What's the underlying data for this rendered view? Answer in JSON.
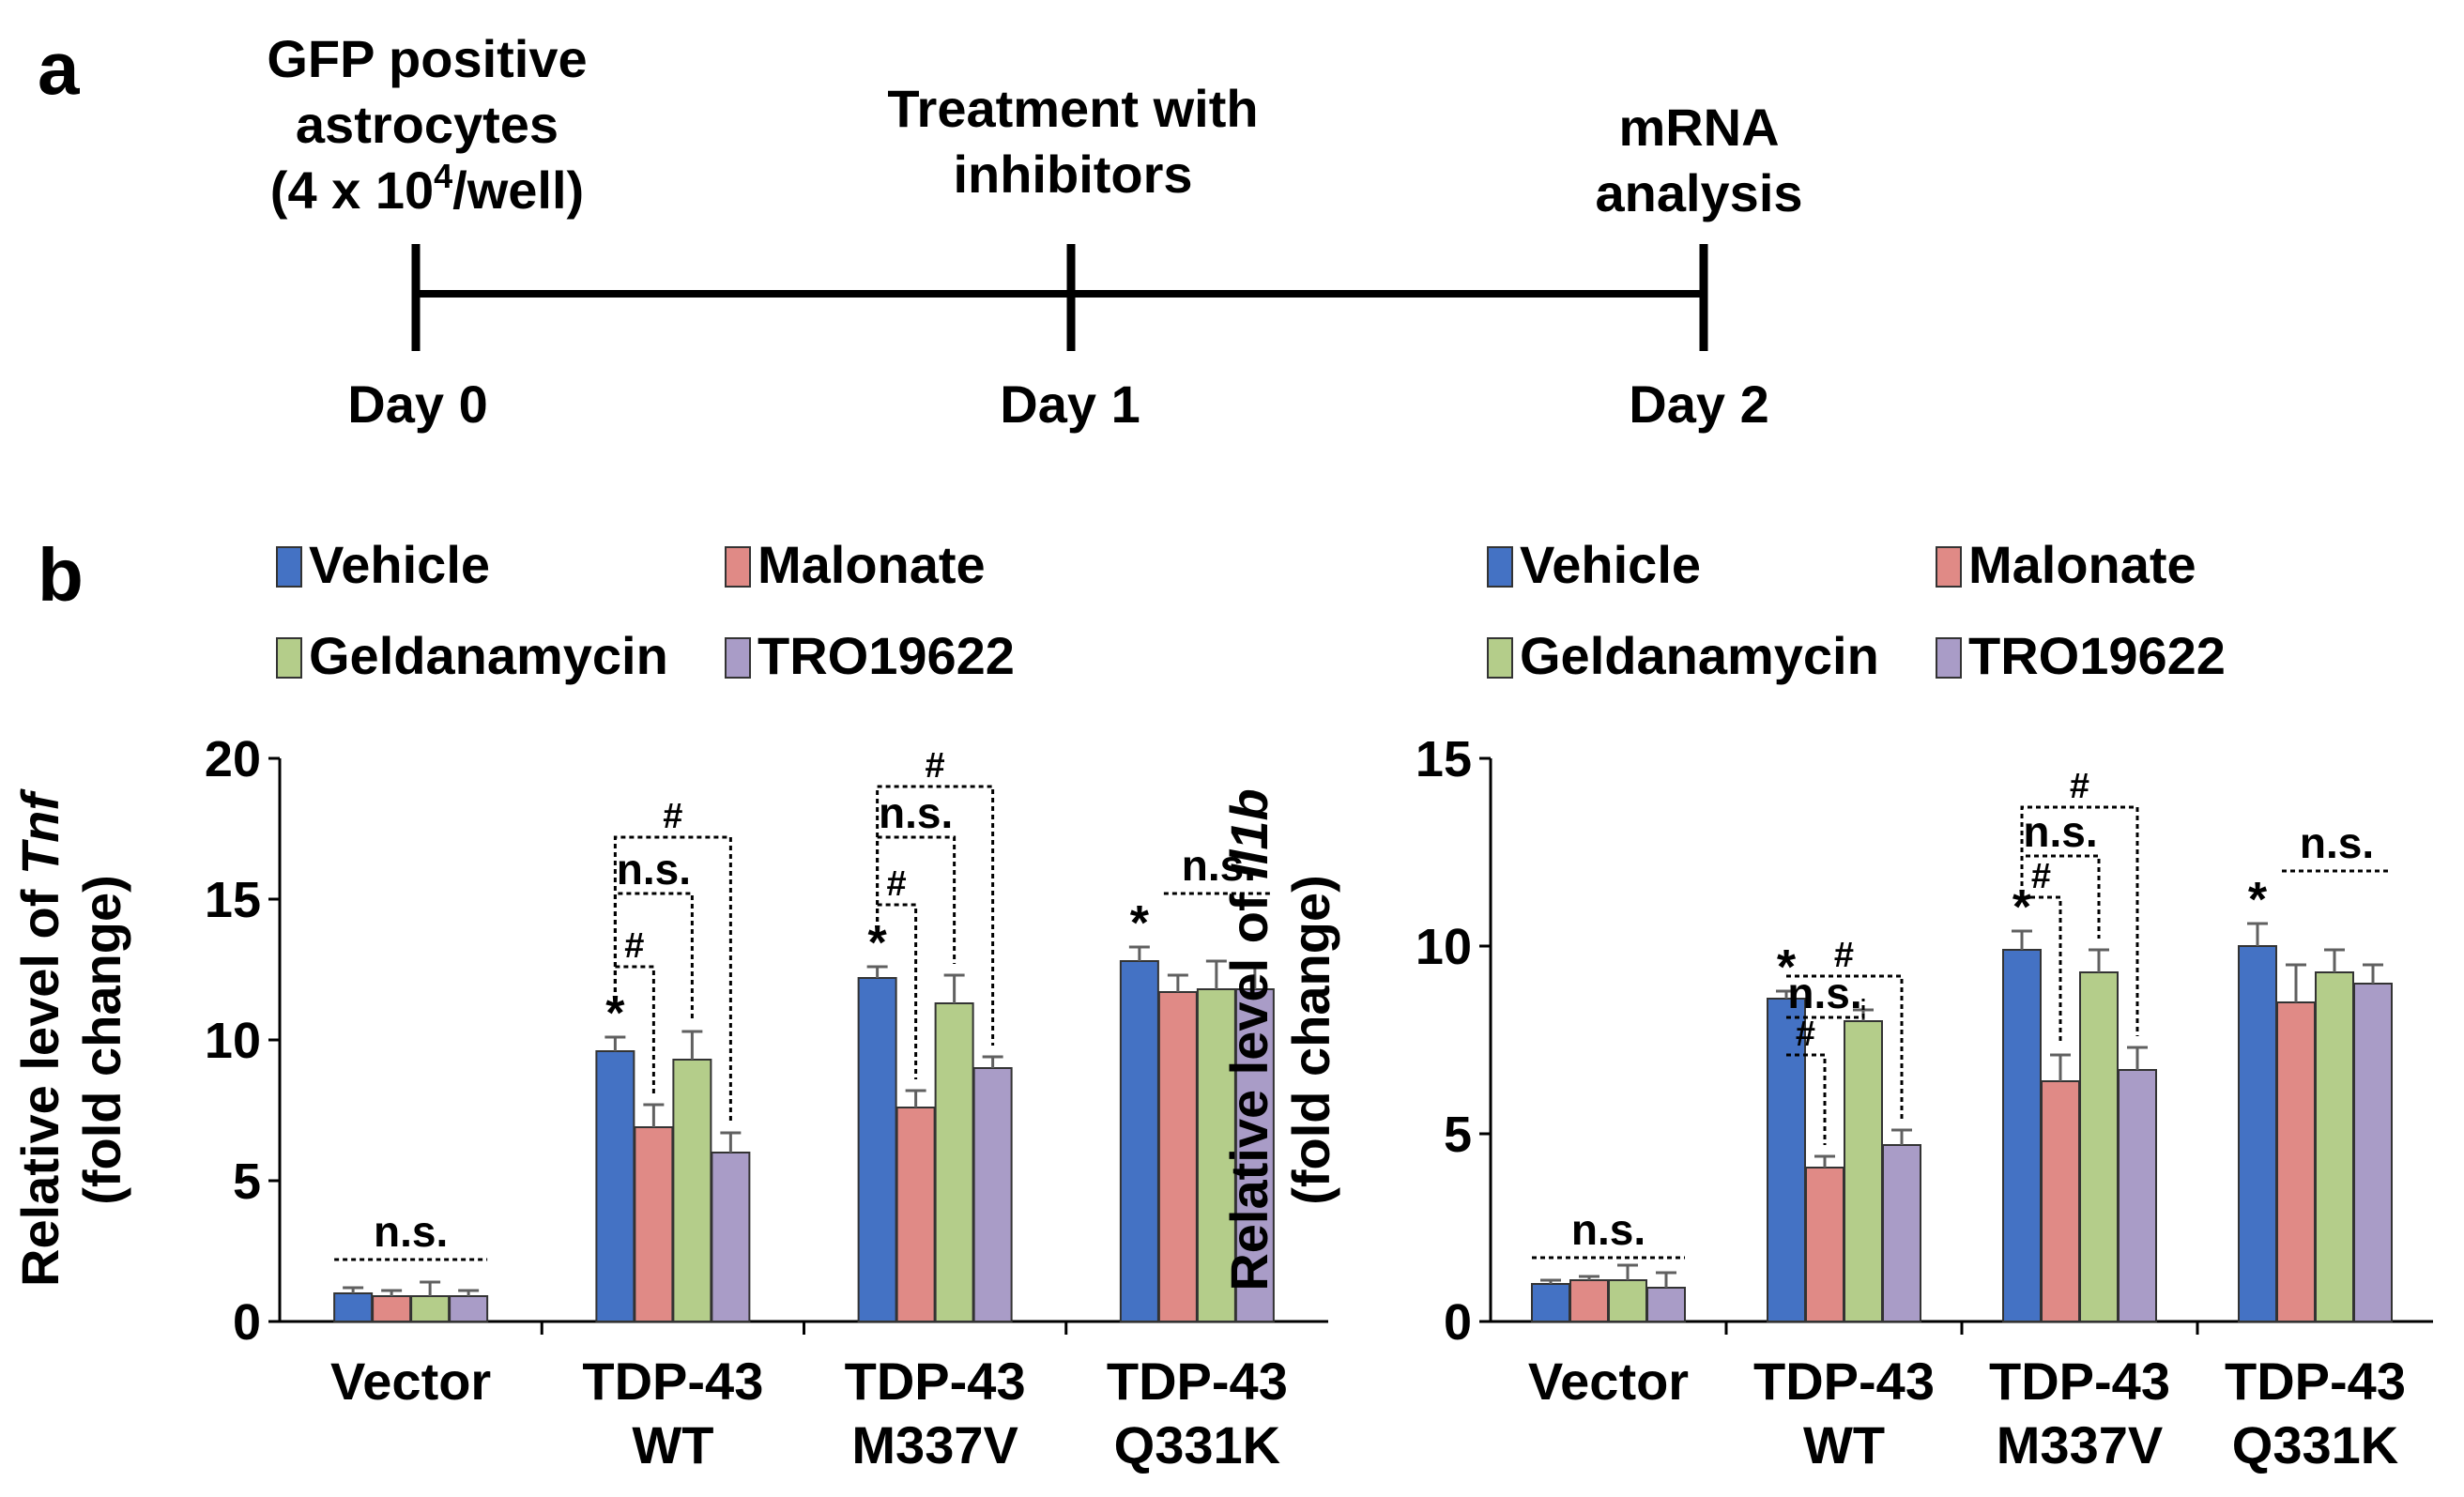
{
  "panel_a": {
    "label": "a",
    "steps": [
      {
        "title": [
          "GFP positive",
          "astrocytes",
          "(4 x 10",
          "4",
          "/well)"
        ],
        "day": "Day 0"
      },
      {
        "title": [
          "Treatment with",
          "inhibitors"
        ],
        "day": "Day 1"
      },
      {
        "title": [
          "mRNA",
          "analysis"
        ],
        "day": "Day 2"
      }
    ]
  },
  "panel_b": {
    "label": "b"
  },
  "colors": {
    "Vehicle": "#4472c4",
    "Malonate": "#e08a86",
    "Geldanamycin": "#b4cd8a",
    "TRO19622": "#a99cc7",
    "error": "#606060"
  },
  "chart_data": [
    {
      "type": "bar",
      "title": "",
      "ylabel_prefix": "Relative level of ",
      "ylabel_gene": "Tnf",
      "ylabel_line2": "(fold change)",
      "ylim": [
        0,
        20
      ],
      "yticks": [
        0,
        5,
        10,
        15,
        20
      ],
      "legend": [
        "Vehicle",
        "Malonate",
        "Geldanamycin",
        "TRO19622"
      ],
      "categories": [
        [
          "Vector"
        ],
        [
          "TDP-43",
          "WT"
        ],
        [
          "TDP-43",
          "M337V"
        ],
        [
          "TDP-43",
          "Q331K"
        ]
      ],
      "series": [
        {
          "name": "Vehicle",
          "values": [
            1.0,
            9.6,
            12.2,
            12.8
          ],
          "errors": [
            0.2,
            0.5,
            0.4,
            0.5
          ]
        },
        {
          "name": "Malonate",
          "values": [
            0.9,
            6.9,
            7.6,
            11.7
          ],
          "errors": [
            0.2,
            0.8,
            0.6,
            0.6
          ]
        },
        {
          "name": "Geldanamycin",
          "values": [
            0.9,
            9.3,
            11.3,
            11.8
          ],
          "errors": [
            0.5,
            1.0,
            1.0,
            1.0
          ]
        },
        {
          "name": "TRO19622",
          "values": [
            0.9,
            6.0,
            9.0,
            11.8
          ],
          "errors": [
            0.2,
            0.7,
            0.4,
            0.8
          ]
        }
      ],
      "star_marks": [
        {
          "group": 1,
          "text": "*"
        },
        {
          "group": 2,
          "text": "*"
        },
        {
          "group": 3,
          "text": "*"
        }
      ],
      "comparisons": [
        {
          "group": "all",
          "from": 0,
          "to": 3,
          "y": 2.2,
          "label": "n.s.",
          "type": "line"
        },
        {
          "group": 1,
          "from": 0,
          "to": 1,
          "y": 12.6,
          "label": "#",
          "type": "bracket"
        },
        {
          "group": 1,
          "from": 0,
          "to": 2,
          "y": 15.2,
          "label": "n.s.",
          "type": "bracket"
        },
        {
          "group": 1,
          "from": 0,
          "to": 3,
          "y": 17.2,
          "label": "#",
          "type": "bracket"
        },
        {
          "group": 2,
          "from": 0,
          "to": 1,
          "y": 14.8,
          "label": "#",
          "type": "bracket"
        },
        {
          "group": 2,
          "from": 0,
          "to": 2,
          "y": 17.2,
          "label": "n.s.",
          "type": "bracket"
        },
        {
          "group": 2,
          "from": 0,
          "to": 3,
          "y": 19.0,
          "label": "#",
          "type": "bracket"
        },
        {
          "group": 3,
          "from": 1,
          "to": 3,
          "y": 15.2,
          "label": "n.s.",
          "type": "line"
        }
      ]
    },
    {
      "type": "bar",
      "title": "",
      "ylabel_prefix": "Relative level of ",
      "ylabel_gene": "Il1b",
      "ylabel_line2": "(fold change)",
      "ylim": [
        0,
        15
      ],
      "yticks": [
        0,
        5,
        10,
        15
      ],
      "legend": [
        "Vehicle",
        "Malonate",
        "Geldanamycin",
        "TRO19622"
      ],
      "categories": [
        [
          "Vector"
        ],
        [
          "TDP-43",
          "WT"
        ],
        [
          "TDP-43",
          "M337V"
        ],
        [
          "TDP-43",
          "Q331K"
        ]
      ],
      "series": [
        {
          "name": "Vehicle",
          "values": [
            1.0,
            8.6,
            9.9,
            10.0
          ],
          "errors": [
            0.1,
            0.2,
            0.5,
            0.6
          ]
        },
        {
          "name": "Malonate",
          "values": [
            1.1,
            4.1,
            6.4,
            8.5
          ],
          "errors": [
            0.1,
            0.3,
            0.7,
            1.0
          ]
        },
        {
          "name": "Geldanamycin",
          "values": [
            1.1,
            8.0,
            9.3,
            9.3
          ],
          "errors": [
            0.4,
            0.3,
            0.6,
            0.6
          ]
        },
        {
          "name": "TRO19622",
          "values": [
            0.9,
            4.7,
            6.7,
            9.0
          ],
          "errors": [
            0.4,
            0.4,
            0.6,
            0.5
          ]
        }
      ],
      "star_marks": [
        {
          "group": 1,
          "text": "*"
        },
        {
          "group": 2,
          "text": "*"
        },
        {
          "group": 3,
          "text": "*"
        }
      ],
      "comparisons": [
        {
          "group": "all",
          "from": 0,
          "to": 3,
          "y": 1.7,
          "label": "n.s.",
          "type": "line"
        },
        {
          "group": 1,
          "from": 0,
          "to": 1,
          "y": 7.1,
          "label": "#",
          "type": "bracket"
        },
        {
          "group": 1,
          "from": 0,
          "to": 2,
          "y": 8.1,
          "label": "n.s.",
          "type": "bracket"
        },
        {
          "group": 1,
          "from": 0,
          "to": 3,
          "y": 9.2,
          "label": "#",
          "type": "bracket"
        },
        {
          "group": 2,
          "from": 0,
          "to": 1,
          "y": 11.3,
          "label": "#",
          "type": "bracket"
        },
        {
          "group": 2,
          "from": 0,
          "to": 2,
          "y": 12.4,
          "label": "n.s.",
          "type": "bracket"
        },
        {
          "group": 2,
          "from": 0,
          "to": 3,
          "y": 13.7,
          "label": "#",
          "type": "bracket"
        },
        {
          "group": 3,
          "from": 1,
          "to": 3,
          "y": 12.0,
          "label": "n.s.",
          "type": "line"
        }
      ]
    }
  ]
}
